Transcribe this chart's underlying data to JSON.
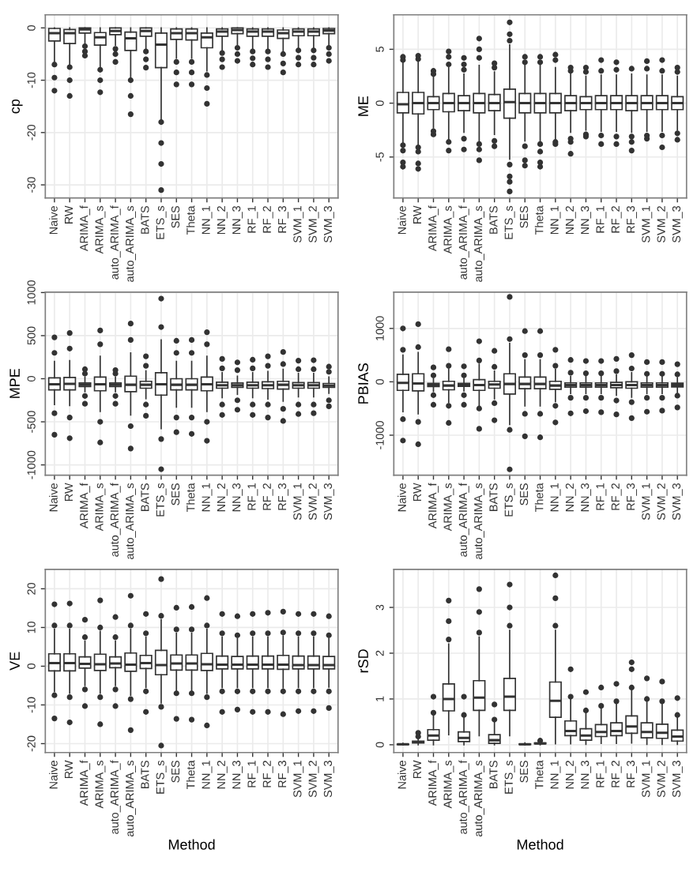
{
  "chart_data": [
    {
      "type": "box",
      "ylabel": "cp",
      "grid": true,
      "ylim": [
        -32.5,
        2.5
      ],
      "yticks": [
        0,
        -10,
        -20,
        -30
      ],
      "categories": [
        "Naive",
        "RW",
        "ARIMA_f",
        "ARIMA_s",
        "auto_ARIMA_f",
        "auto_ARIMA_s",
        "BATS",
        "ETS_s",
        "SES",
        "Theta",
        "NN_1",
        "NN_2",
        "NN_3",
        "RF_1",
        "RF_2",
        "RF_3",
        "SVM_1",
        "SVM_2",
        "SVM_3"
      ],
      "boxes": [
        {
          "low": -6.3,
          "q1": -2.5,
          "median": -1,
          "q3": -0.1,
          "high": 0,
          "outliers": [
            -7,
            -9.5,
            -12
          ]
        },
        {
          "low": -7,
          "q1": -3,
          "median": -1,
          "q3": -0.3,
          "high": 0,
          "outliers": [
            -7.5,
            -10,
            -13
          ]
        },
        {
          "low": -3,
          "q1": -1,
          "median": -0.3,
          "q3": 0,
          "high": 0,
          "outliers": [
            -3.5,
            -4.5,
            -5.3
          ]
        },
        {
          "low": -7.5,
          "q1": -3.3,
          "median": -1.8,
          "q3": -0.9,
          "high": 0,
          "outliers": [
            -8,
            -10,
            -12.3
          ]
        },
        {
          "low": -3.3,
          "q1": -1.3,
          "median": -0.6,
          "q3": 0,
          "high": 0,
          "outliers": [
            -4,
            -5,
            -6.5
          ]
        },
        {
          "low": -9.6,
          "q1": -4.3,
          "median": -2,
          "q3": -0.8,
          "high": 0,
          "outliers": [
            -10,
            -13,
            -16.5
          ]
        },
        {
          "low": -4,
          "q1": -1.6,
          "median": -0.6,
          "q3": 0,
          "high": 0,
          "outliers": [
            -4.5,
            -6,
            -7.6
          ]
        },
        {
          "low": -17.6,
          "q1": -7.6,
          "median": -3.2,
          "q3": -1,
          "high": 0,
          "outliers": [
            -18,
            -22,
            -26,
            -31
          ]
        },
        {
          "low": -5.8,
          "q1": -2.2,
          "median": -1,
          "q3": -0.2,
          "high": 0,
          "outliers": [
            -6.5,
            -8.5,
            -10.8
          ]
        },
        {
          "low": -5.8,
          "q1": -2.3,
          "median": -1,
          "q3": -0.2,
          "high": 0,
          "outliers": [
            -6.5,
            -8.5,
            -10.8
          ]
        },
        {
          "low": -8.2,
          "q1": -3.8,
          "median": -1.8,
          "q3": -1,
          "high": 0,
          "outliers": [
            -9,
            -11.5,
            -14.5
          ]
        },
        {
          "low": -4.2,
          "q1": -1.6,
          "median": -0.7,
          "q3": -0.2,
          "high": 0,
          "outliers": [
            -4.8,
            -6,
            -7.5
          ]
        },
        {
          "low": -3.2,
          "q1": -1.1,
          "median": -0.4,
          "q3": 0,
          "high": 0,
          "outliers": [
            -3.8,
            -5,
            -6.3
          ]
        },
        {
          "low": -4,
          "q1": -1.6,
          "median": -0.7,
          "q3": -0.2,
          "high": 0,
          "outliers": [
            -4.5,
            -5.8,
            -7
          ]
        },
        {
          "low": -4,
          "q1": -1.6,
          "median": -0.7,
          "q3": -0.2,
          "high": 0,
          "outliers": [
            -4.5,
            -6,
            -7.5
          ]
        },
        {
          "low": -4.6,
          "q1": -2,
          "median": -1,
          "q3": -0.4,
          "high": 0,
          "outliers": [
            -5,
            -6.8,
            -8.5
          ]
        },
        {
          "low": -3.8,
          "q1": -1.5,
          "median": -0.7,
          "q3": -0.2,
          "high": 0,
          "outliers": [
            -4.3,
            -5.7,
            -7
          ]
        },
        {
          "low": -3.8,
          "q1": -1.5,
          "median": -0.7,
          "q3": -0.2,
          "high": 0,
          "outliers": [
            -4.3,
            -5.7,
            -7
          ]
        },
        {
          "low": -3.3,
          "q1": -1.1,
          "median": -0.5,
          "q3": -0.1,
          "high": 0,
          "outliers": [
            -3.8,
            -5,
            -6.3
          ]
        }
      ]
    },
    {
      "type": "box",
      "ylabel": "ME",
      "grid": true,
      "ylim": [
        -8.8,
        8.2
      ],
      "yticks": [
        -5,
        0,
        5
      ],
      "categories": [
        "Naive",
        "RW",
        "ARIMA_f",
        "ARIMA_s",
        "auto_ARIMA_f",
        "auto_ARIMA_s",
        "BATS",
        "ETS_s",
        "SES",
        "Theta",
        "NN_1",
        "NN_2",
        "NN_3",
        "RF_1",
        "RF_2",
        "RF_3",
        "SVM_1",
        "SVM_2",
        "SVM_3"
      ],
      "boxes": [
        {
          "low": -3.7,
          "q1": -0.9,
          "median": -0.1,
          "q3": 1,
          "high": 3.8,
          "outliers": [
            4,
            4.3,
            -3.9,
            -4.4,
            -5.5,
            -5.9
          ]
        },
        {
          "low": -3.9,
          "q1": -1,
          "median": 0,
          "q3": 1,
          "high": 3.9,
          "outliers": [
            4.1,
            4.4,
            -4.1,
            -4.5,
            -5.6,
            -6.1
          ]
        },
        {
          "low": -2.3,
          "q1": -0.6,
          "median": 0,
          "q3": 0.6,
          "high": 2.4,
          "outliers": [
            2.7,
            3,
            -2.6,
            -2.9
          ]
        },
        {
          "low": -3.3,
          "q1": -0.8,
          "median": 0,
          "q3": 0.9,
          "high": 3.3,
          "outliers": [
            3.6,
            4.3,
            4.8,
            -3.6,
            -4.4
          ]
        },
        {
          "low": -2.7,
          "q1": -0.7,
          "median": 0,
          "q3": 0.7,
          "high": 2.7,
          "outliers": [
            3.1,
            3.6,
            4.2,
            -3.3,
            -4.3
          ]
        },
        {
          "low": -3.5,
          "q1": -0.9,
          "median": 0,
          "q3": 0.9,
          "high": 3.5,
          "outliers": [
            4.2,
            5,
            6,
            -3.8,
            -4.3,
            -5.3
          ]
        },
        {
          "low": -2.9,
          "q1": -0.7,
          "median": 0,
          "q3": 0.8,
          "high": 2.9,
          "outliers": [
            3.3,
            3.7,
            -3.5,
            -4
          ]
        },
        {
          "low": -5.2,
          "q1": -1.4,
          "median": 0.1,
          "q3": 1.3,
          "high": 5.4,
          "outliers": [
            5.8,
            6.4,
            7.5,
            -5.7,
            -6.8,
            -7.3,
            -8.2
          ]
        },
        {
          "low": -3.5,
          "q1": -0.9,
          "median": 0,
          "q3": 0.9,
          "high": 3.5,
          "outliers": [
            3.8,
            4.3,
            -4,
            -5.3,
            -5.8
          ]
        },
        {
          "low": -3.5,
          "q1": -0.9,
          "median": 0,
          "q3": 0.9,
          "high": 3.5,
          "outliers": [
            3.8,
            4.3,
            -3.8,
            -4.5,
            -5.5,
            -5.9
          ]
        },
        {
          "low": -3.3,
          "q1": -0.9,
          "median": 0,
          "q3": 0.9,
          "high": 3.3,
          "outliers": [
            4,
            4.5,
            -3.6,
            -3.8
          ]
        },
        {
          "low": -2.7,
          "q1": -0.7,
          "median": 0,
          "q3": 0.7,
          "high": 2.7,
          "outliers": [
            3,
            3.3,
            -3.3,
            -3.6,
            -4.7
          ]
        },
        {
          "low": -2.5,
          "q1": -0.6,
          "median": 0,
          "q3": 0.6,
          "high": 2.5,
          "outliers": [
            2.9,
            3.3,
            -2.9,
            -3.1
          ]
        },
        {
          "low": -2.6,
          "q1": -0.6,
          "median": 0,
          "q3": 0.7,
          "high": 2.6,
          "outliers": [
            3,
            4,
            -3,
            -3.8
          ]
        },
        {
          "low": -2.6,
          "q1": -0.6,
          "median": 0,
          "q3": 0.7,
          "high": 2.6,
          "outliers": [
            3.1,
            3.8,
            -3.1,
            -3.8
          ]
        },
        {
          "low": -2.7,
          "q1": -0.7,
          "median": 0,
          "q3": 0.7,
          "high": 2.7,
          "outliers": [
            3.2,
            -3.1,
            -3.6,
            -4.4
          ]
        },
        {
          "low": -2.6,
          "q1": -0.6,
          "median": 0,
          "q3": 0.7,
          "high": 2.6,
          "outliers": [
            3.2,
            3.9,
            -3,
            -3.3
          ]
        },
        {
          "low": -2.6,
          "q1": -0.6,
          "median": 0,
          "q3": 0.7,
          "high": 2.6,
          "outliers": [
            3,
            4,
            -3,
            -4.1
          ]
        },
        {
          "low": -2.5,
          "q1": -0.6,
          "median": 0,
          "q3": 0.6,
          "high": 2.5,
          "outliers": [
            2.9,
            3.3,
            -2.8,
            -3.4
          ]
        }
      ]
    },
    {
      "type": "box",
      "ylabel": "MPE",
      "grid": true,
      "ylim": [
        -1120,
        1005
      ],
      "yticks": [
        -1000,
        -500,
        0,
        500,
        1000
      ],
      "categories": [
        "Naive",
        "RW",
        "ARIMA_f",
        "ARIMA_s",
        "auto_ARIMA_f",
        "auto_ARIMA_s",
        "BATS",
        "ETS_s",
        "SES",
        "Theta",
        "NN_1",
        "NN_2",
        "NN_3",
        "RF_1",
        "RF_2",
        "RF_3",
        "SVM_1",
        "SVM_2",
        "SVM_3"
      ],
      "boxes": [
        {
          "low": -300,
          "q1": -130,
          "median": -65,
          "q3": 10,
          "high": 200,
          "outliers": [
            300,
            480,
            -400,
            -650
          ]
        },
        {
          "low": -310,
          "q1": -130,
          "median": -60,
          "q3": 15,
          "high": 210,
          "outliers": [
            350,
            530,
            -450,
            -690
          ]
        },
        {
          "low": -150,
          "q1": -90,
          "median": -70,
          "q3": -50,
          "high": 20,
          "outliers": [
            60,
            110,
            -200,
            -290
          ]
        },
        {
          "low": -380,
          "q1": -140,
          "median": -65,
          "q3": 20,
          "high": 260,
          "outliers": [
            400,
            560,
            -500,
            -740
          ]
        },
        {
          "low": -150,
          "q1": -90,
          "median": -70,
          "q3": -50,
          "high": 20,
          "outliers": [
            60,
            100,
            -200,
            -290
          ]
        },
        {
          "low": -420,
          "q1": -150,
          "median": -70,
          "q3": 30,
          "high": 300,
          "outliers": [
            450,
            640,
            -550,
            -810
          ]
        },
        {
          "low": -230,
          "q1": -110,
          "median": -70,
          "q3": -30,
          "high": 90,
          "outliers": [
            150,
            260,
            -300,
            -430
          ]
        },
        {
          "low": -580,
          "q1": -190,
          "median": -65,
          "q3": 70,
          "high": 450,
          "outliers": [
            600,
            930,
            -700,
            -1050
          ]
        },
        {
          "low": -330,
          "q1": -130,
          "median": -70,
          "q3": 0,
          "high": 200,
          "outliers": [
            300,
            440,
            -450,
            -620
          ]
        },
        {
          "low": -330,
          "q1": -130,
          "median": -70,
          "q3": 0,
          "high": 200,
          "outliers": [
            300,
            450,
            -450,
            -640
          ]
        },
        {
          "low": -380,
          "q1": -140,
          "median": -65,
          "q3": 20,
          "high": 260,
          "outliers": [
            400,
            540,
            -500,
            -720
          ]
        },
        {
          "low": -220,
          "q1": -110,
          "median": -75,
          "q3": -40,
          "high": 70,
          "outliers": [
            120,
            230,
            -300,
            -420
          ]
        },
        {
          "low": -180,
          "q1": -100,
          "median": -75,
          "q3": -50,
          "high": 30,
          "outliers": [
            100,
            190,
            -250,
            -360
          ]
        },
        {
          "low": -220,
          "q1": -110,
          "median": -75,
          "q3": -40,
          "high": 70,
          "outliers": [
            120,
            220,
            -300,
            -420
          ]
        },
        {
          "low": -235,
          "q1": -115,
          "median": -75,
          "q3": -35,
          "high": 85,
          "outliers": [
            150,
            260,
            -300,
            -450
          ]
        },
        {
          "low": -260,
          "q1": -120,
          "median": -70,
          "q3": -30,
          "high": 110,
          "outliers": [
            170,
            310,
            -350,
            -490
          ]
        },
        {
          "low": -210,
          "q1": -110,
          "median": -75,
          "q3": -45,
          "high": 60,
          "outliers": [
            110,
            210,
            -300,
            -410
          ]
        },
        {
          "low": -210,
          "q1": -110,
          "median": -75,
          "q3": -45,
          "high": 60,
          "outliers": [
            110,
            215,
            -300,
            -400
          ]
        },
        {
          "low": -170,
          "q1": -100,
          "median": -80,
          "q3": -55,
          "high": 20,
          "outliers": [
            80,
            140,
            -250,
            -320
          ]
        }
      ]
    },
    {
      "type": "box",
      "ylabel": "PBIAS",
      "grid": true,
      "ylim": [
        -1750,
        1680
      ],
      "yticks": [
        -1000,
        0,
        1000
      ],
      "categories": [
        "Naive",
        "RW",
        "ARIMA_f",
        "ARIMA_s",
        "auto_ARIMA_f",
        "auto_ARIMA_s",
        "BATS",
        "ETS_s",
        "SES",
        "Theta",
        "NN_1",
        "NN_2",
        "NN_3",
        "RF_1",
        "RF_2",
        "RF_3",
        "SVM_1",
        "SVM_2",
        "SVM_3"
      ],
      "boxes": [
        {
          "low": -560,
          "q1": -160,
          "median": -20,
          "q3": 140,
          "high": 500,
          "outliers": [
            600,
            1000,
            -700,
            -1100
          ]
        },
        {
          "low": -600,
          "q1": -170,
          "median": -30,
          "q3": 150,
          "high": 550,
          "outliers": [
            650,
            1080,
            -750,
            -1170
          ]
        },
        {
          "low": -180,
          "q1": -90,
          "median": -60,
          "q3": -30,
          "high": 60,
          "outliers": [
            120,
            270,
            -250,
            -430
          ]
        },
        {
          "low": -390,
          "q1": -150,
          "median": -70,
          "q3": 10,
          "high": 240,
          "outliers": [
            300,
            610,
            -450,
            -770
          ]
        },
        {
          "low": -170,
          "q1": -85,
          "median": -60,
          "q3": -30,
          "high": 60,
          "outliers": [
            120,
            290,
            -250,
            -430
          ]
        },
        {
          "low": -450,
          "q1": -160,
          "median": -60,
          "q3": 40,
          "high": 330,
          "outliers": [
            400,
            760,
            -500,
            -880
          ]
        },
        {
          "low": -320,
          "q1": -120,
          "median": -50,
          "q3": 10,
          "high": 200,
          "outliers": [
            280,
            580,
            -400,
            -720
          ]
        },
        {
          "low": -800,
          "q1": -230,
          "median": -40,
          "q3": 150,
          "high": 720,
          "outliers": [
            800,
            1590,
            -900,
            -1640
          ]
        },
        {
          "low": -450,
          "q1": -130,
          "median": -40,
          "q3": 90,
          "high": 410,
          "outliers": [
            500,
            950,
            -600,
            -1020
          ]
        },
        {
          "low": -450,
          "q1": -130,
          "median": -40,
          "q3": 90,
          "high": 410,
          "outliers": [
            500,
            950,
            -600,
            -1040
          ]
        },
        {
          "low": -370,
          "q1": -140,
          "median": -70,
          "q3": 10,
          "high": 230,
          "outliers": [
            300,
            600,
            -450,
            -760
          ]
        },
        {
          "low": -220,
          "q1": -100,
          "median": -60,
          "q3": -20,
          "high": 100,
          "outliers": [
            170,
            410,
            -300,
            -590
          ]
        },
        {
          "low": -220,
          "q1": -100,
          "median": -60,
          "q3": -20,
          "high": 100,
          "outliers": [
            160,
            390,
            -300,
            -550
          ]
        },
        {
          "low": -220,
          "q1": -100,
          "median": -60,
          "q3": -20,
          "high": 100,
          "outliers": [
            160,
            390,
            -300,
            -570
          ]
        },
        {
          "low": -250,
          "q1": -110,
          "median": -60,
          "q3": -10,
          "high": 130,
          "outliers": [
            200,
            430,
            -350,
            -610
          ]
        },
        {
          "low": -290,
          "q1": -120,
          "median": -60,
          "q3": 0,
          "high": 170,
          "outliers": [
            250,
            500,
            -380,
            -680
          ]
        },
        {
          "low": -220,
          "q1": -100,
          "median": -60,
          "q3": -20,
          "high": 100,
          "outliers": [
            150,
            370,
            -300,
            -560
          ]
        },
        {
          "low": -220,
          "q1": -100,
          "median": -60,
          "q3": -20,
          "high": 100,
          "outliers": [
            150,
            370,
            -300,
            -540
          ]
        },
        {
          "low": -200,
          "q1": -95,
          "median": -60,
          "q3": -25,
          "high": 80,
          "outliers": [
            140,
            330,
            -260,
            -480
          ]
        }
      ]
    },
    {
      "type": "box",
      "ylabel": "VE",
      "xlabel": "Method",
      "grid": true,
      "ylim": [
        -22.3,
        25
      ],
      "yticks": [
        -20,
        -10,
        0,
        10,
        20
      ],
      "categories": [
        "Naive",
        "RW",
        "ARIMA_f",
        "ARIMA_s",
        "auto_ARIMA_f",
        "auto_ARIMA_s",
        "BATS",
        "ETS_s",
        "SES",
        "Theta",
        "NN_1",
        "NN_2",
        "NN_3",
        "RF_1",
        "RF_2",
        "RF_3",
        "SVM_1",
        "SVM_2",
        "SVM_3"
      ],
      "boxes": [
        {
          "low": -6.5,
          "q1": -1.2,
          "median": 0.8,
          "q3": 3.2,
          "high": 9.5,
          "outliers": [
            10.5,
            16,
            -7.5,
            -13.5
          ]
        },
        {
          "low": -7,
          "q1": -1.2,
          "median": 0.8,
          "q3": 3.2,
          "high": 9.5,
          "outliers": [
            10.5,
            16.2,
            -8,
            -14.5
          ]
        },
        {
          "low": -5,
          "q1": -0.5,
          "median": 0.6,
          "q3": 2.4,
          "high": 6.5,
          "outliers": [
            7.5,
            12,
            -6,
            -10.3
          ]
        },
        {
          "low": -7,
          "q1": -1.1,
          "median": 0.5,
          "q3": 3.1,
          "high": 9,
          "outliers": [
            10,
            17,
            -8,
            -15
          ]
        },
        {
          "low": -5,
          "q1": -0.4,
          "median": 0.7,
          "q3": 2.4,
          "high": 6.5,
          "outliers": [
            7.5,
            12.7,
            -6,
            -10.3
          ]
        },
        {
          "low": -7.5,
          "q1": -1.3,
          "median": 0.4,
          "q3": 3.4,
          "high": 9.5,
          "outliers": [
            10.5,
            18.2,
            -8.5,
            -16.5
          ]
        },
        {
          "low": -5.5,
          "q1": -0.6,
          "median": 0.8,
          "q3": 2.8,
          "high": 7.5,
          "outliers": [
            8.5,
            13.5,
            -6.5,
            -11.8
          ]
        },
        {
          "low": -9.5,
          "q1": -2.2,
          "median": 0.3,
          "q3": 4.1,
          "high": 12,
          "outliers": [
            13,
            22.5,
            -10.5,
            -20.5
          ]
        },
        {
          "low": -6.5,
          "q1": -1,
          "median": 0.7,
          "q3": 2.9,
          "high": 8.5,
          "outliers": [
            9.5,
            15.1,
            -7,
            -13.6
          ]
        },
        {
          "low": -6.5,
          "q1": -1,
          "median": 0.7,
          "q3": 2.9,
          "high": 8.5,
          "outliers": [
            9.5,
            15.3,
            -7,
            -13.8
          ]
        },
        {
          "low": -7,
          "q1": -1.1,
          "median": 0.5,
          "q3": 3.3,
          "high": 9.5,
          "outliers": [
            10.5,
            17.6,
            -8,
            -15.3
          ]
        },
        {
          "low": -5.5,
          "q1": -0.7,
          "median": 0.4,
          "q3": 2.6,
          "high": 7.5,
          "outliers": [
            8.5,
            13.5,
            -6.5,
            -11.8
          ]
        },
        {
          "low": -5.5,
          "q1": -0.7,
          "median": 0.4,
          "q3": 2.5,
          "high": 7.2,
          "outliers": [
            8,
            12.9,
            -6.5,
            -11.2
          ]
        },
        {
          "low": -5.5,
          "q1": -0.7,
          "median": 0.4,
          "q3": 2.6,
          "high": 7.5,
          "outliers": [
            8.5,
            13.5,
            -6.5,
            -11.8
          ]
        },
        {
          "low": -5.5,
          "q1": -0.7,
          "median": 0.4,
          "q3": 2.6,
          "high": 7.5,
          "outliers": [
            8.5,
            13.8,
            -6.5,
            -11.8
          ]
        },
        {
          "low": -5.6,
          "q1": -0.8,
          "median": 0.4,
          "q3": 2.8,
          "high": 7.8,
          "outliers": [
            8.7,
            14.1,
            -6.5,
            -12.4
          ]
        },
        {
          "low": -5.5,
          "q1": -0.7,
          "median": 0.3,
          "q3": 2.6,
          "high": 7.5,
          "outliers": [
            8.5,
            13.5,
            -6.5,
            -11.6
          ]
        },
        {
          "low": -5.5,
          "q1": -0.7,
          "median": 0.3,
          "q3": 2.6,
          "high": 7.5,
          "outliers": [
            8.5,
            13.5,
            -6.5,
            -11.6
          ]
        },
        {
          "low": -5.4,
          "q1": -0.7,
          "median": 0.3,
          "q3": 2.5,
          "high": 7.2,
          "outliers": [
            8,
            12.9,
            -6.5,
            -10.8
          ]
        }
      ]
    },
    {
      "type": "box",
      "ylabel": "rSD",
      "xlabel": "Method",
      "grid": true,
      "ylim": [
        -0.17,
        3.83
      ],
      "yticks": [
        0,
        1,
        2,
        3
      ],
      "categories": [
        "Naive",
        "RW",
        "ARIMA_f",
        "ARIMA_s",
        "auto_ARIMA_f",
        "auto_ARIMA_s",
        "BATS",
        "ETS_s",
        "SES",
        "Theta",
        "NN_1",
        "NN_2",
        "NN_3",
        "RF_1",
        "RF_2",
        "RF_3",
        "SVM_1",
        "SVM_2",
        "SVM_3"
      ],
      "boxes": [
        {
          "low": 0,
          "q1": 0.005,
          "median": 0.01,
          "q3": 0.015,
          "high": 0.03
        },
        {
          "low": 0,
          "q1": 0.04,
          "median": 0.06,
          "q3": 0.08,
          "high": 0.14,
          "outliers": [
            0.18,
            0.26
          ]
        },
        {
          "low": 0,
          "q1": 0.1,
          "median": 0.2,
          "q3": 0.33,
          "high": 0.65,
          "outliers": [
            0.7,
            1.05
          ]
        },
        {
          "low": 0.22,
          "q1": 0.74,
          "median": 1,
          "q3": 1.33,
          "high": 2.2,
          "outliers": [
            2.3,
            2.7,
            3.15
          ]
        },
        {
          "low": 0,
          "q1": 0.07,
          "median": 0.15,
          "q3": 0.28,
          "high": 0.6,
          "outliers": [
            0.65,
            1.05
          ]
        },
        {
          "low": 0.2,
          "q1": 0.75,
          "median": 1.03,
          "q3": 1.4,
          "high": 2.35,
          "outliers": [
            2.45,
            2.9,
            3.4
          ]
        },
        {
          "low": 0,
          "q1": 0.03,
          "median": 0.1,
          "q3": 0.22,
          "high": 0.5,
          "outliers": [
            0.55,
            0.88
          ]
        },
        {
          "low": 0.2,
          "q1": 0.75,
          "median": 1.05,
          "q3": 1.45,
          "high": 2.5,
          "outliers": [
            2.6,
            3,
            3.5
          ]
        },
        {
          "low": 0,
          "q1": 0.005,
          "median": 0.01,
          "q3": 0.02,
          "high": 0.04
        },
        {
          "low": 0,
          "q1": 0.02,
          "median": 0.03,
          "q3": 0.04,
          "high": 0.07,
          "outliers": [
            0.09
          ]
        },
        {
          "low": 0.02,
          "q1": 0.6,
          "median": 0.96,
          "q3": 1.37,
          "high": 2.5,
          "outliers": [
            2.6,
            3.2,
            3.7
          ]
        },
        {
          "low": 0.02,
          "q1": 0.2,
          "median": 0.3,
          "q3": 0.52,
          "high": 1,
          "outliers": [
            1.05,
            1.65
          ]
        },
        {
          "low": 0.01,
          "q1": 0.1,
          "median": 0.2,
          "q3": 0.35,
          "high": 0.72,
          "outliers": [
            0.75,
            1.15
          ]
        },
        {
          "low": 0.03,
          "q1": 0.18,
          "median": 0.28,
          "q3": 0.44,
          "high": 0.82,
          "outliers": [
            0.85,
            1.25
          ]
        },
        {
          "low": 0.03,
          "q1": 0.2,
          "median": 0.3,
          "q3": 0.48,
          "high": 0.9,
          "outliers": [
            0.95,
            1.33
          ]
        },
        {
          "low": 0.04,
          "q1": 0.25,
          "median": 0.4,
          "q3": 0.63,
          "high": 1.2,
          "outliers": [
            1.25,
            1.65,
            1.8
          ]
        },
        {
          "low": 0.01,
          "q1": 0.15,
          "median": 0.28,
          "q3": 0.48,
          "high": 0.96,
          "outliers": [
            1,
            1.45
          ]
        },
        {
          "low": 0.01,
          "q1": 0.14,
          "median": 0.26,
          "q3": 0.45,
          "high": 0.9,
          "outliers": [
            0.95,
            1.38
          ]
        },
        {
          "low": 0.01,
          "q1": 0.08,
          "median": 0.18,
          "q3": 0.32,
          "high": 0.62,
          "outliers": [
            0.65,
            1.02
          ]
        }
      ]
    }
  ]
}
